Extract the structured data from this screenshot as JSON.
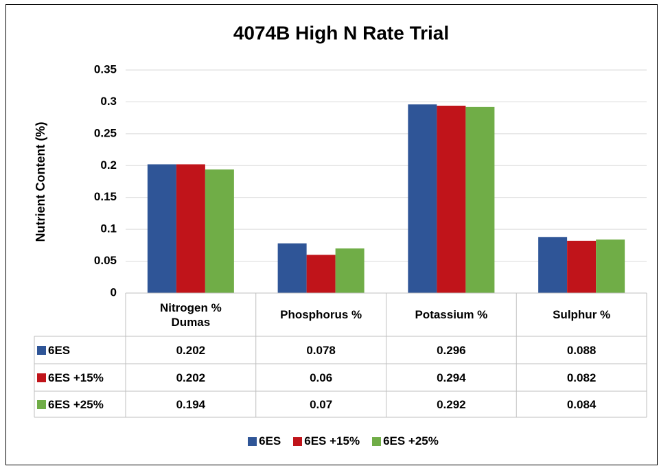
{
  "chart_data": {
    "type": "bar",
    "title": "4074B High N Rate Trial",
    "y_label": "Nutrient Content (%)",
    "categories": [
      "Nitrogen % Dumas",
      "Phosphorus %",
      "Potassium %",
      "Sulphur %"
    ],
    "series": [
      {
        "name": "6ES",
        "color": "#2f5597",
        "values": [
          0.202,
          0.078,
          0.296,
          0.088
        ]
      },
      {
        "name": "6ES +15%",
        "color": "#c0141a",
        "values": [
          0.202,
          0.06,
          0.294,
          0.082
        ]
      },
      {
        "name": "6ES +25%",
        "color": "#70ad47",
        "values": [
          0.194,
          0.07,
          0.292,
          0.084
        ]
      }
    ],
    "ylim": [
      0,
      0.35
    ],
    "yticks": [
      0,
      0.05,
      0.1,
      0.15,
      0.2,
      0.25,
      0.3,
      0.35
    ],
    "grid": true,
    "legend": "bottom",
    "data_table": true
  }
}
